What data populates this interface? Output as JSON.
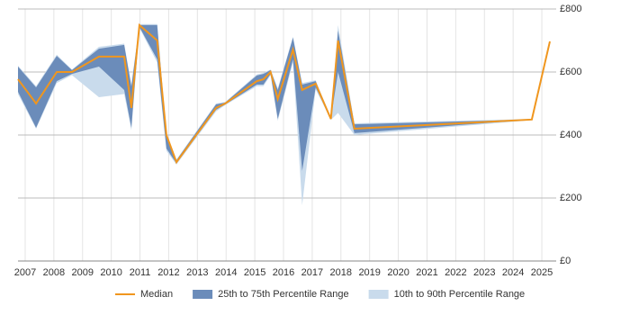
{
  "chart_data": {
    "type": "percentile-line",
    "x": [
      2006.75,
      2007.38,
      2008.1,
      2008.63,
      2009.57,
      2010.45,
      2010.7,
      2010.98,
      2011.6,
      2011.92,
      2012.27,
      2013.65,
      2013.97,
      2015.07,
      2015.3,
      2015.55,
      2015.8,
      2016.33,
      2016.65,
      2017.12,
      2017.65,
      2017.9,
      2018.47,
      2024.65,
      2025.28
    ],
    "series": [
      {
        "name": "Median",
        "color": "#f0961e",
        "values": [
          577,
          500,
          600,
          600,
          649,
          649,
          486,
          749,
          700,
          400,
          314,
          486,
          500,
          571,
          577,
          600,
          514,
          671,
          543,
          563,
          451,
          700,
          420,
          449,
          697
        ]
      },
      {
        "name": "25th to 75th Percentile Range",
        "color": "#6b8cba",
        "high": [
          617,
          551,
          651,
          606,
          674,
          686,
          554,
          749,
          749,
          400,
          320,
          497,
          503,
          589,
          594,
          606,
          543,
          709,
          560,
          571,
          451,
          731,
          434,
          449,
          697
        ],
        "low": [
          537,
          423,
          571,
          594,
          617,
          543,
          423,
          743,
          640,
          357,
          310,
          480,
          497,
          560,
          560,
          594,
          451,
          640,
          286,
          551,
          451,
          600,
          406,
          449,
          697
        ]
      },
      {
        "name": "10th to 90th Percentile Range",
        "color": "#c9dbec",
        "high": [
          620,
          555,
          655,
          608,
          680,
          690,
          560,
          752,
          752,
          404,
          322,
          500,
          505,
          592,
          597,
          608,
          548,
          712,
          565,
          574,
          455,
          749,
          437,
          451,
          697
        ],
        "low": [
          530,
          420,
          565,
          590,
          520,
          530,
          415,
          740,
          630,
          350,
          306,
          475,
          495,
          555,
          555,
          590,
          445,
          630,
          177,
          545,
          448,
          470,
          400,
          447,
          697
        ]
      }
    ],
    "xlim": [
      2006.75,
      2025.5
    ],
    "xticks": [
      2007,
      2008,
      2009,
      2010,
      2011,
      2012,
      2013,
      2014,
      2015,
      2016,
      2017,
      2018,
      2019,
      2020,
      2021,
      2022,
      2023,
      2024,
      2025
    ],
    "ylim": [
      0,
      800
    ],
    "yticks": [
      {
        "value": 0,
        "label": "£0"
      },
      {
        "value": 200,
        "label": "£200"
      },
      {
        "value": 400,
        "label": "£400"
      },
      {
        "value": 600,
        "label": "£600"
      },
      {
        "value": 800,
        "label": "£800"
      }
    ],
    "grid": true
  }
}
